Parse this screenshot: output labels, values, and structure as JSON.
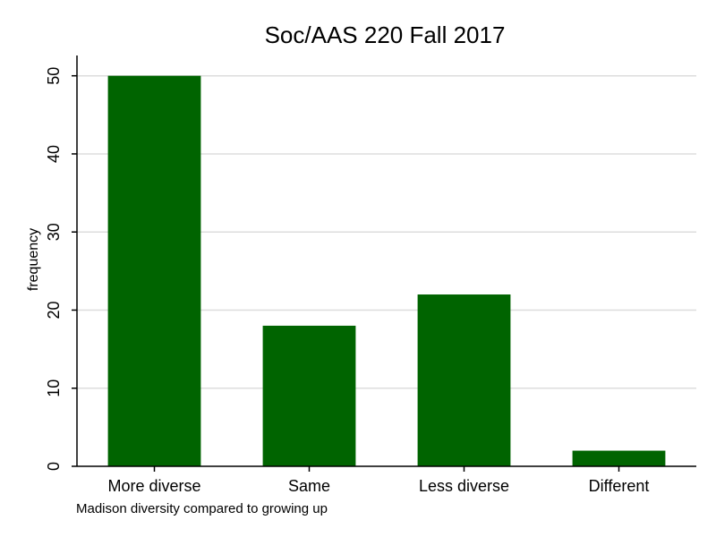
{
  "chart_data": {
    "type": "bar",
    "title": "Soc/AAS 220 Fall 2017",
    "xlabel": "Madison diversity compared to growing up",
    "ylabel": "frequency",
    "categories": [
      "More diverse",
      "Same",
      "Less diverse",
      "Different"
    ],
    "values": [
      50,
      18,
      22,
      2
    ],
    "ylim": [
      0,
      52.6
    ],
    "yticks": [
      0,
      10,
      20,
      30,
      40,
      50
    ],
    "grid": true,
    "legend": "none",
    "colors": {
      "bar": "#006400",
      "grid": "#dddddd",
      "axis": "#000000",
      "background": "#ffffff"
    }
  }
}
